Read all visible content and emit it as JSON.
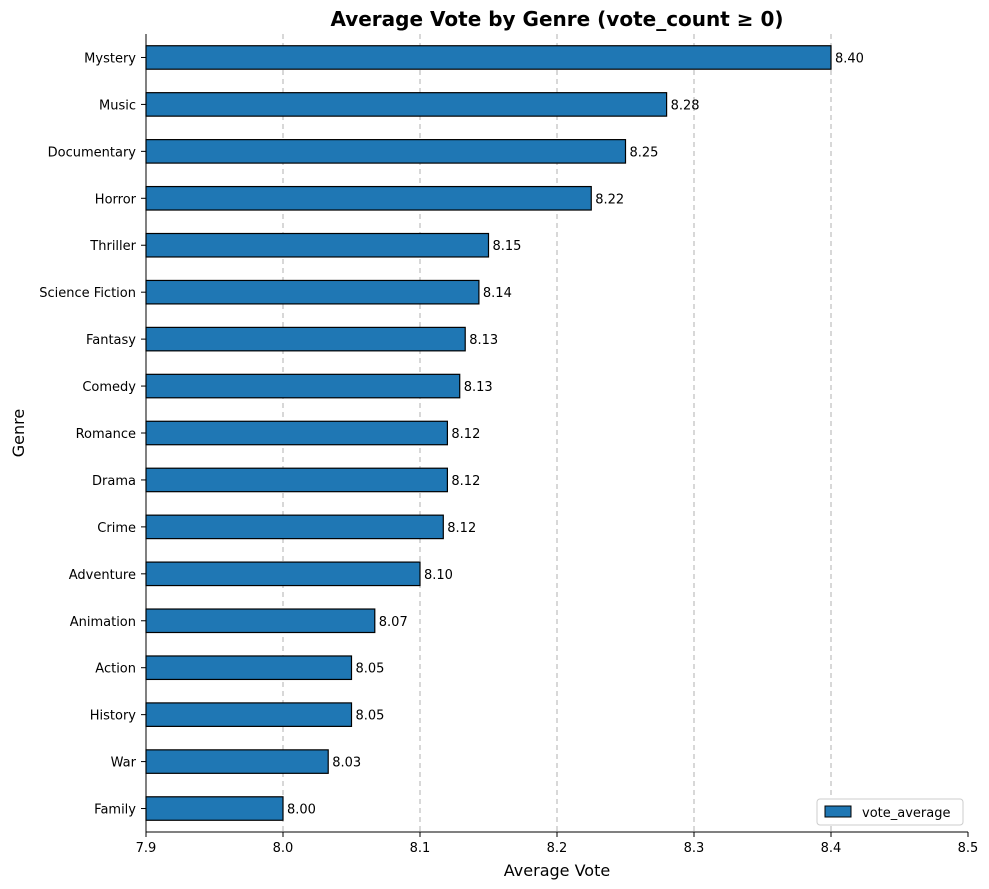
{
  "chart_data": {
    "type": "bar",
    "orientation": "horizontal",
    "title": "Average Vote by Genre (vote_count ≥ 0)",
    "xlabel": "Average Vote",
    "ylabel": "Genre",
    "xlim": [
      7.9,
      8.5
    ],
    "xticks": [
      "7.9",
      "8.0",
      "8.1",
      "8.2",
      "8.3",
      "8.4",
      "8.5"
    ],
    "grid": "x-dashed",
    "legend_position": "bottom-right",
    "bar_color": "#1f77b4",
    "edge_color": "#000000",
    "categories": [
      "Mystery",
      "Music",
      "Documentary",
      "Horror",
      "Thriller",
      "Science Fiction",
      "Fantasy",
      "Comedy",
      "Romance",
      "Drama",
      "Crime",
      "Adventure",
      "Animation",
      "Action",
      "History",
      "War",
      "Family"
    ],
    "series": [
      {
        "name": "vote_average",
        "values": [
          8.4,
          8.28,
          8.25,
          8.225,
          8.15,
          8.143,
          8.133,
          8.129,
          8.12,
          8.12,
          8.117,
          8.1,
          8.067,
          8.05,
          8.05,
          8.033,
          8.0
        ],
        "labels": [
          "8.40",
          "8.28",
          "8.25",
          "8.22",
          "8.15",
          "8.14",
          "8.13",
          "8.13",
          "8.12",
          "8.12",
          "8.12",
          "8.10",
          "8.07",
          "8.05",
          "8.05",
          "8.03",
          "8.00"
        ]
      }
    ]
  }
}
